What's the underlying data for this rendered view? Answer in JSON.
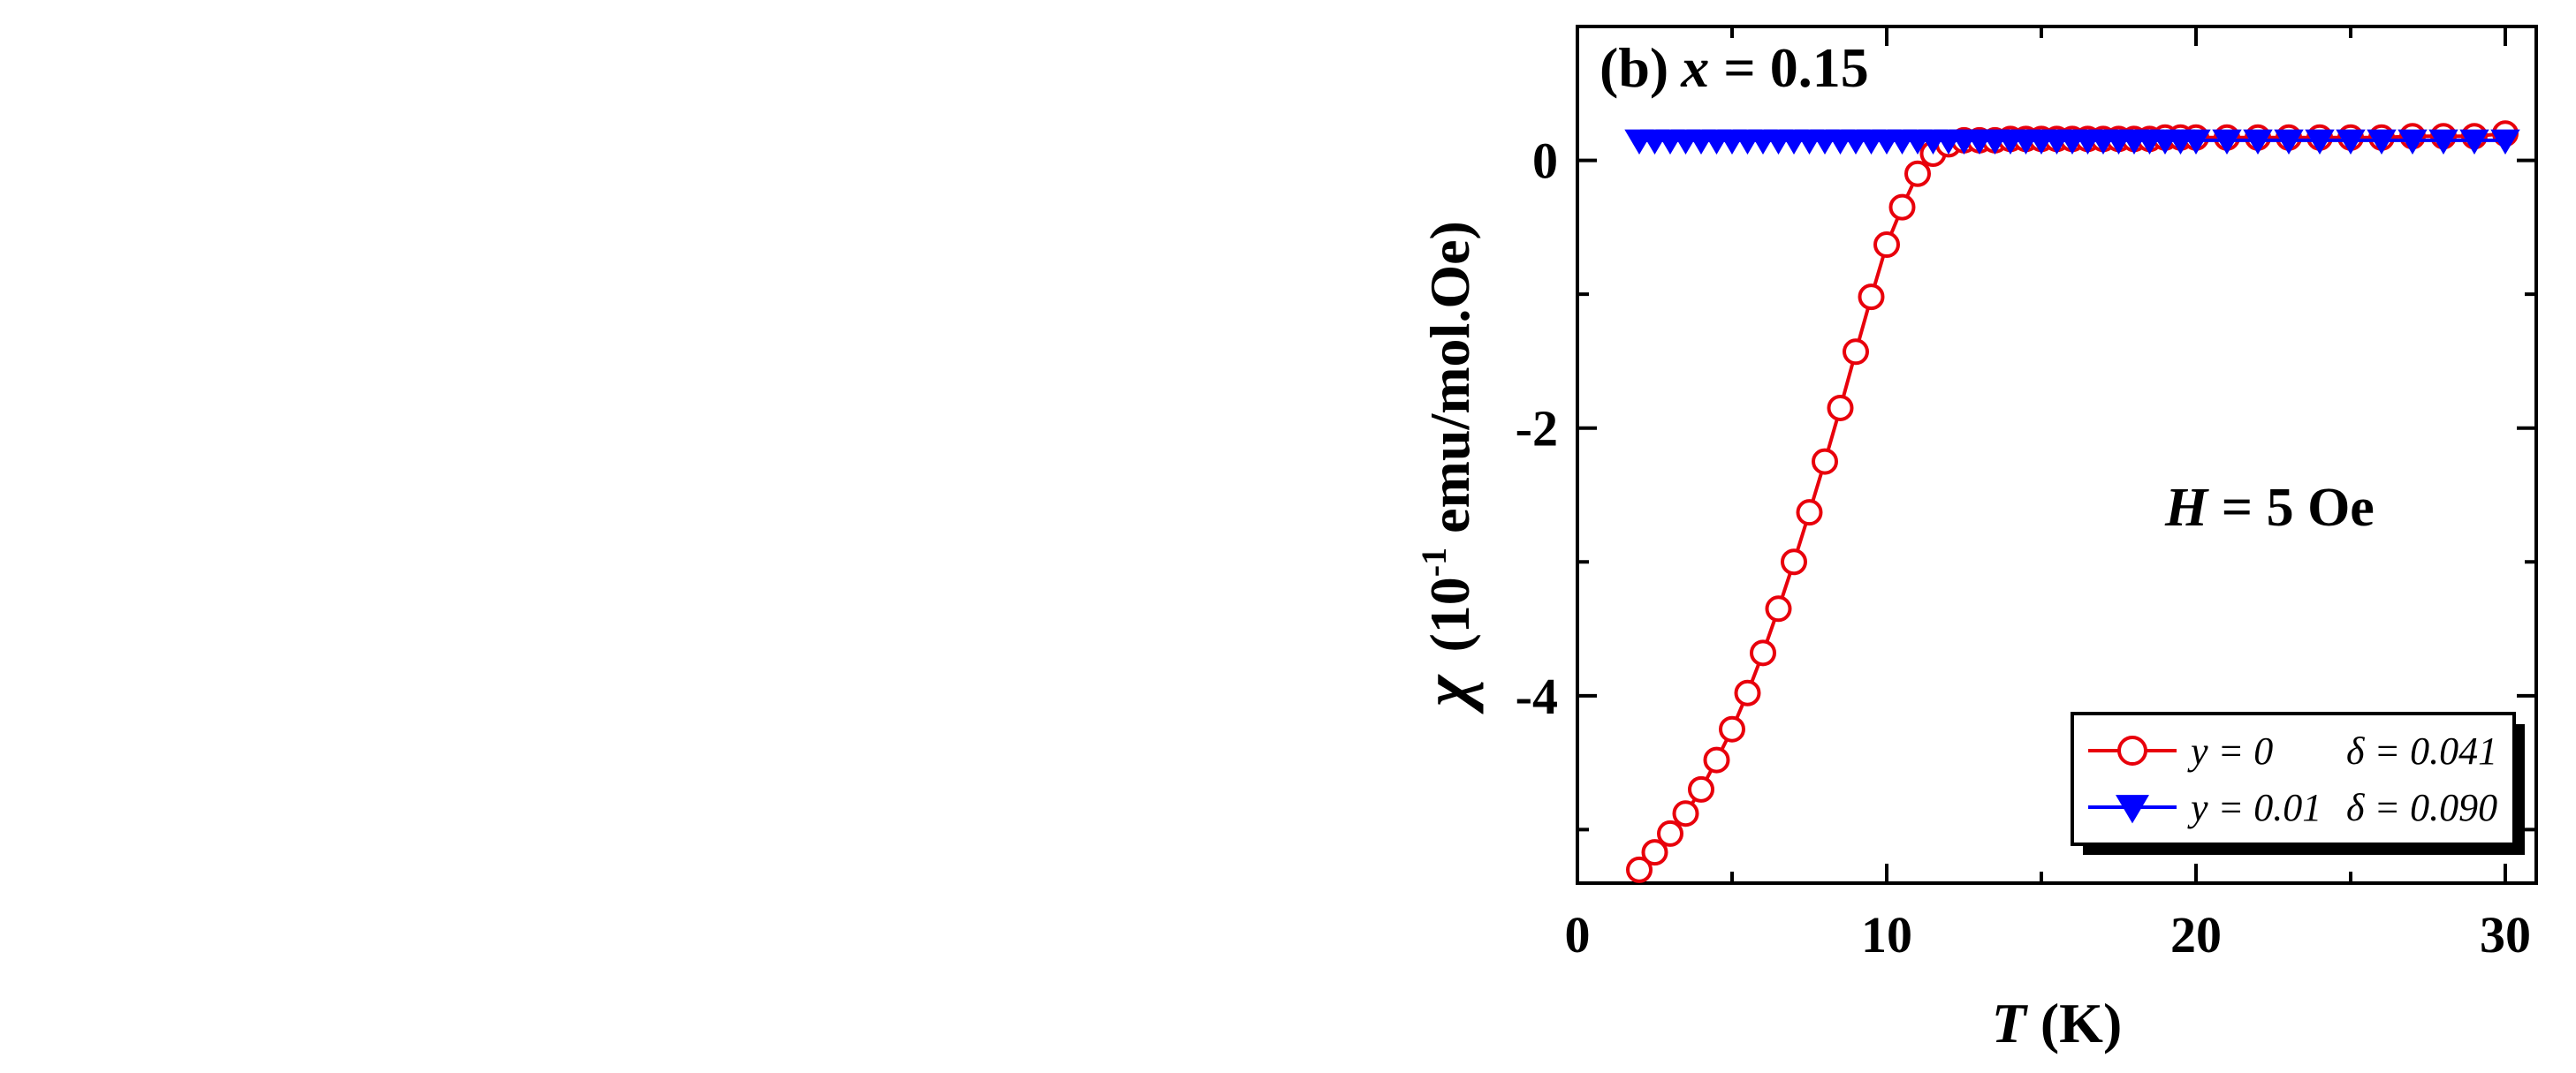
{
  "chart_data": [
    {
      "type": "scatter",
      "panel_label": "(b)",
      "title_var": "x",
      "title_rest": " = 0.15",
      "xlabel_var": "T",
      "xlabel_unit": " (K)",
      "ylabel_sym": "χ",
      "ylabel_pre": "(10",
      "ylabel_exp": "-1",
      "ylabel_post": " emu/mol.Oe)",
      "xlim": [
        0,
        31
      ],
      "ylim": [
        -5.4,
        1.0
      ],
      "xticks": [
        0,
        10,
        20,
        30
      ],
      "yticks": [
        0,
        -2,
        -4
      ],
      "annotation_var": "H",
      "annotation_rest": " = 5 Oe",
      "legend_position": "bottom-right",
      "series": [
        {
          "name": "y = 0",
          "legend_label": "y = 0",
          "legend_delta": "δ = 0.041",
          "color": "#e8000b",
          "marker": "circle-open",
          "line": true,
          "x": [
            2,
            2.5,
            3,
            3.5,
            4,
            4.5,
            5,
            5.5,
            6,
            6.5,
            7,
            7.5,
            8,
            8.5,
            9,
            9.5,
            10,
            10.5,
            11,
            11.5,
            12,
            12.5,
            13,
            13.5,
            14,
            14.5,
            15,
            15.5,
            16,
            16.5,
            17,
            17.5,
            18,
            18.5,
            19,
            19.5,
            20,
            21,
            22,
            23,
            24,
            25,
            26,
            27,
            28,
            29,
            30
          ],
          "y": [
            -5.3,
            -5.17,
            -5.03,
            -4.88,
            -4.7,
            -4.48,
            -4.25,
            -3.98,
            -3.68,
            -3.35,
            -3.0,
            -2.63,
            -2.25,
            -1.85,
            -1.43,
            -1.02,
            -0.63,
            -0.35,
            -0.1,
            0.05,
            0.12,
            0.15,
            0.15,
            0.15,
            0.16,
            0.16,
            0.16,
            0.16,
            0.16,
            0.16,
            0.16,
            0.16,
            0.16,
            0.16,
            0.17,
            0.17,
            0.17,
            0.17,
            0.17,
            0.17,
            0.17,
            0.17,
            0.17,
            0.18,
            0.18,
            0.18,
            0.2
          ]
        },
        {
          "name": "y = 0.01",
          "legend_label": "y = 0.01",
          "legend_delta": "δ = 0.090",
          "color": "#0000ff",
          "marker": "triangle-down-filled",
          "line": true,
          "x": [
            2,
            2.5,
            3,
            3.5,
            4,
            4.5,
            5,
            5.5,
            6,
            6.5,
            7,
            7.5,
            8,
            8.5,
            9,
            9.5,
            10,
            10.5,
            11,
            11.5,
            12,
            12.5,
            13,
            13.5,
            14,
            14.5,
            15,
            15.5,
            16,
            16.5,
            17,
            17.5,
            18,
            18.5,
            19,
            19.5,
            20,
            21,
            22,
            23,
            24,
            25,
            26,
            27,
            28,
            29,
            30
          ],
          "y": [
            0.15,
            0.15,
            0.15,
            0.15,
            0.15,
            0.15,
            0.15,
            0.15,
            0.15,
            0.15,
            0.15,
            0.15,
            0.15,
            0.15,
            0.15,
            0.15,
            0.15,
            0.15,
            0.15,
            0.15,
            0.15,
            0.15,
            0.15,
            0.15,
            0.15,
            0.15,
            0.15,
            0.15,
            0.15,
            0.15,
            0.15,
            0.15,
            0.15,
            0.15,
            0.15,
            0.15,
            0.15,
            0.15,
            0.15,
            0.15,
            0.15,
            0.15,
            0.15,
            0.15,
            0.15,
            0.15,
            0.15
          ]
        }
      ]
    }
  ]
}
